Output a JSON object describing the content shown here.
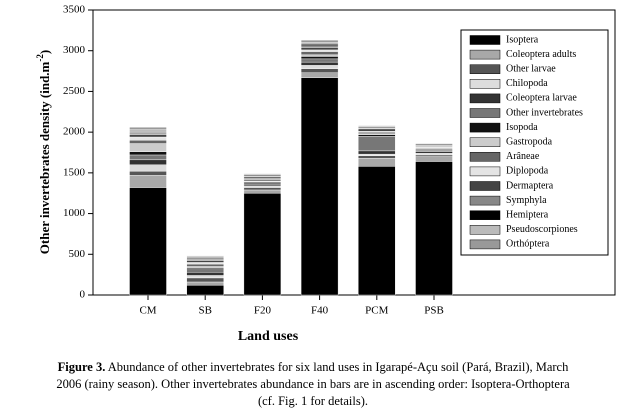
{
  "chart_data": {
    "type": "stacked_bar",
    "y_label": [
      "Other invertebrates density (ind.m",
      "-2",
      ")"
    ],
    "x_label": "Land uses",
    "categories": [
      "CM",
      "SB",
      "F20",
      "F40",
      "PCM",
      "PSB"
    ],
    "ylim": [
      0,
      3500
    ],
    "yticks": [
      0,
      500,
      1000,
      1500,
      2000,
      2500,
      3000,
      3500
    ],
    "series": [
      {
        "name": "Isoptera",
        "color": "#000000",
        "values": [
          1320,
          120,
          1250,
          2670,
          1580,
          1640
        ]
      },
      {
        "name": "Coleoptera adults",
        "color": "#a8a8a8",
        "values": [
          150,
          40,
          40,
          60,
          100,
          60
        ]
      },
      {
        "name": "Other larvae",
        "color": "#555555",
        "values": [
          50,
          50,
          30,
          50,
          30,
          20
        ]
      },
      {
        "name": "Chilopoda",
        "color": "#dddddd",
        "values": [
          80,
          30,
          20,
          40,
          20,
          20
        ]
      },
      {
        "name": "Coleoptera larvae",
        "color": "#333333",
        "values": [
          60,
          40,
          20,
          40,
          40,
          20
        ]
      },
      {
        "name": "Other invertebrates",
        "color": "#777777",
        "values": [
          60,
          30,
          20,
          40,
          180,
          20
        ]
      },
      {
        "name": "Isopoda",
        "color": "#111111",
        "values": [
          40,
          20,
          10,
          30,
          20,
          10
        ]
      },
      {
        "name": "Gastropoda",
        "color": "#cccccc",
        "values": [
          100,
          20,
          10,
          20,
          10,
          10
        ]
      },
      {
        "name": "Arâneae",
        "color": "#666666",
        "values": [
          40,
          30,
          20,
          40,
          20,
          10
        ]
      },
      {
        "name": "Diplopoda",
        "color": "#e4e4e4",
        "values": [
          40,
          20,
          10,
          20,
          10,
          10
        ]
      },
      {
        "name": "Dermaptera",
        "color": "#444444",
        "values": [
          30,
          20,
          20,
          30,
          30,
          10
        ]
      },
      {
        "name": "Symphyla",
        "color": "#888888",
        "values": [
          20,
          20,
          10,
          20,
          10,
          10
        ]
      },
      {
        "name": "Hemiptera",
        "color": "#000000",
        "values": [
          10,
          10,
          10,
          20,
          10,
          10
        ]
      },
      {
        "name": "Pseudoscorpiones",
        "color": "#bbbbbb",
        "values": [
          30,
          20,
          10,
          20,
          10,
          10
        ]
      },
      {
        "name": "Orthóptera",
        "color": "#999999",
        "values": [
          30,
          10,
          10,
          30,
          10,
          0
        ]
      }
    ]
  },
  "caption": {
    "label": "Figure 3.",
    "lines": [
      " Abundance of other invertebrates for six land uses in Igarapé-Açu soil (Pará, Brazil), March",
      "2006 (rainy season). Other invertebrates abundance in bars are in ascending order: Isoptera-Orthoptera",
      "(cf. Fig. 1 for details)."
    ]
  }
}
